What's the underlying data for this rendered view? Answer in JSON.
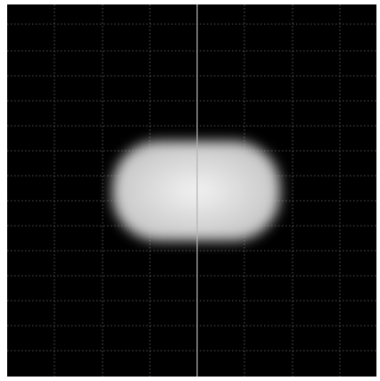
{
  "image": {
    "background_color": "#000000",
    "frame_color": "#ffffff",
    "grid_color": "#6b6b6b",
    "marker_line_color": "#b5b5b5",
    "blob_center_color": "#f2f2f2",
    "blob_edge_color": "#bfbfbf",
    "grid_style": "dotted",
    "grid_visible": true
  }
}
